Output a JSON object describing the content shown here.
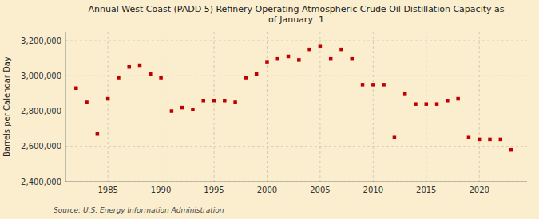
{
  "chart_data": {
    "type": "scatter",
    "title": "Annual West Coast (PADD 5) Refinery Operating Atmospheric Crude Oil Distillation Capacity as\nof January  1",
    "ylabel": "Barrels per Calendar Day",
    "source": "Source: U.S. Energy Information Administration",
    "color": "#c00000",
    "marker": "square",
    "grid": true,
    "x": [
      1982,
      1983,
      1984,
      1985,
      1986,
      1987,
      1988,
      1989,
      1990,
      1991,
      1992,
      1993,
      1994,
      1995,
      1996,
      1997,
      1998,
      1999,
      2000,
      2001,
      2002,
      2003,
      2004,
      2005,
      2006,
      2007,
      2008,
      2009,
      2010,
      2011,
      2012,
      2013,
      2014,
      2015,
      2016,
      2017,
      2018,
      2019,
      2020,
      2021,
      2022,
      2023
    ],
    "values": [
      2930000,
      2850000,
      2670000,
      2870000,
      2990000,
      3050000,
      3060000,
      3010000,
      2990000,
      2800000,
      2820000,
      2810000,
      2860000,
      2860000,
      2860000,
      2850000,
      2990000,
      3010000,
      3080000,
      3100000,
      3110000,
      3090000,
      3150000,
      3170000,
      3100000,
      3150000,
      3100000,
      2950000,
      2950000,
      2950000,
      2650000,
      2900000,
      2840000,
      2840000,
      2840000,
      2860000,
      2870000,
      2650000,
      2640000,
      2640000,
      2640000,
      2580000
    ],
    "xlim": [
      1981.0,
      2024.5
    ],
    "ylim": [
      2400000,
      3250000
    ],
    "xticks": [
      1985,
      1990,
      1995,
      2000,
      2005,
      2010,
      2015,
      2020
    ],
    "yticks": [
      {
        "value": 2400000,
        "label": "2,400,000"
      },
      {
        "value": 2600000,
        "label": "2,600,000"
      },
      {
        "value": 2800000,
        "label": "2,800,000"
      },
      {
        "value": 3000000,
        "label": "3,000,000"
      },
      {
        "value": 3200000,
        "label": "3,200,000"
      }
    ]
  }
}
